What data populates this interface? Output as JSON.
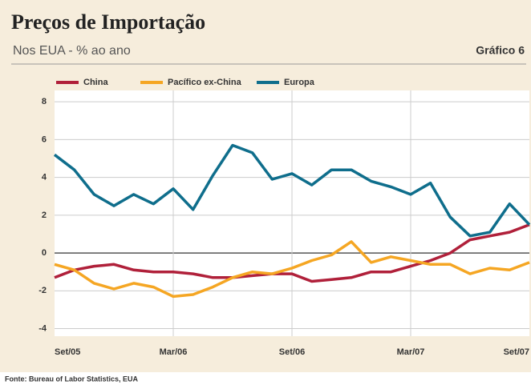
{
  "chart_data": {
    "type": "line",
    "title": "Preços de Importação",
    "subtitle": "Nos EUA - % ao ano",
    "label": "Gráfico 6",
    "source": "Fonte: Bureau of Labor Statistics, EUA",
    "categories": [
      "Set/05",
      null,
      null,
      null,
      null,
      null,
      "Mar/06",
      null,
      null,
      null,
      null,
      null,
      "Set/06",
      null,
      null,
      null,
      null,
      null,
      "Mar/07",
      null,
      null,
      null,
      null,
      null,
      "Set/07"
    ],
    "series": [
      {
        "name": "China",
        "color": "#b0203a",
        "values": [
          -1.3,
          -0.9,
          -0.7,
          -0.6,
          -0.9,
          -1.0,
          -1.0,
          -1.1,
          -1.3,
          -1.3,
          -1.2,
          -1.1,
          -1.1,
          -1.5,
          -1.4,
          -1.3,
          -1.0,
          -1.0,
          -0.7,
          -0.4,
          0.0,
          0.7,
          0.9,
          1.1,
          1.5
        ]
      },
      {
        "name": "Pacífico ex-China",
        "color": "#f5a623",
        "values": [
          -0.6,
          -0.9,
          -1.6,
          -1.9,
          -1.6,
          -1.8,
          -2.3,
          -2.2,
          -1.8,
          -1.3,
          -1.0,
          -1.1,
          -0.8,
          -0.4,
          -0.1,
          0.6,
          -0.5,
          -0.2,
          -0.4,
          -0.6,
          -0.6,
          -1.1,
          -0.8,
          -0.9,
          -0.5
        ]
      },
      {
        "name": "Europa",
        "color": "#0f6e8c",
        "values": [
          5.2,
          4.4,
          3.1,
          2.5,
          3.1,
          2.6,
          3.4,
          2.3,
          4.1,
          5.7,
          5.3,
          3.9,
          4.2,
          3.6,
          4.4,
          4.4,
          3.8,
          3.5,
          3.1,
          3.7,
          1.9,
          0.9,
          1.1,
          2.6,
          1.5
        ]
      }
    ],
    "ylim": [
      -4.4,
      8.6
    ],
    "yticks": [
      8,
      6,
      4,
      2,
      0,
      -2,
      -4
    ],
    "grid": true
  }
}
